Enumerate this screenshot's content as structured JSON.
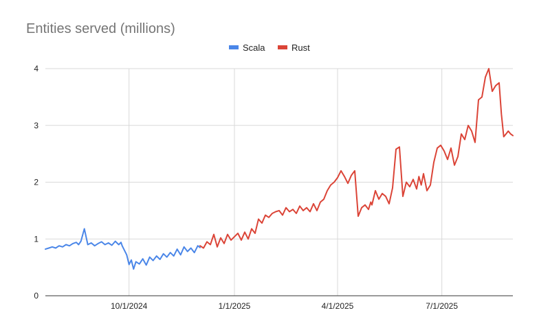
{
  "chart_data": {
    "type": "line",
    "title": "Entities served (millions)",
    "xlabel": "",
    "ylabel": "",
    "ylim": [
      0,
      4
    ],
    "xlim": [
      "2024-07-20",
      "2025-09-01"
    ],
    "y_ticks": [
      "0",
      "1",
      "2",
      "3",
      "4"
    ],
    "x_ticks": [
      {
        "date": "2024-10-01",
        "label": "10/1/2024"
      },
      {
        "date": "2025-01-01",
        "label": "1/1/2025"
      },
      {
        "date": "2025-04-01",
        "label": "4/1/2025"
      },
      {
        "date": "2025-07-01",
        "label": "7/1/2025"
      }
    ],
    "grid": true,
    "legend": "top-center",
    "series": [
      {
        "name": "Scala",
        "color": "#4a86e8",
        "x": [
          "2024-07-20",
          "2024-07-23",
          "2024-07-26",
          "2024-07-29",
          "2024-08-01",
          "2024-08-04",
          "2024-08-07",
          "2024-08-10",
          "2024-08-13",
          "2024-08-16",
          "2024-08-18",
          "2024-08-20",
          "2024-08-23",
          "2024-08-26",
          "2024-08-29",
          "2024-09-01",
          "2024-09-04",
          "2024-09-07",
          "2024-09-10",
          "2024-09-13",
          "2024-09-16",
          "2024-09-19",
          "2024-09-22",
          "2024-09-24",
          "2024-09-25",
          "2024-09-27",
          "2024-09-29",
          "2024-10-01",
          "2024-10-03",
          "2024-10-05",
          "2024-10-07",
          "2024-10-10",
          "2024-10-13",
          "2024-10-16",
          "2024-10-19",
          "2024-10-22",
          "2024-10-25",
          "2024-10-28",
          "2024-10-31",
          "2024-11-03",
          "2024-11-06",
          "2024-11-09",
          "2024-11-12",
          "2024-11-15",
          "2024-11-18",
          "2024-11-21",
          "2024-11-24",
          "2024-11-27",
          "2024-11-30",
          "2024-12-02"
        ],
        "values": [
          0.82,
          0.84,
          0.86,
          0.84,
          0.88,
          0.86,
          0.9,
          0.88,
          0.92,
          0.94,
          0.9,
          0.96,
          1.18,
          0.9,
          0.93,
          0.88,
          0.92,
          0.95,
          0.9,
          0.93,
          0.89,
          0.96,
          0.9,
          0.94,
          0.88,
          0.8,
          0.72,
          0.55,
          0.63,
          0.47,
          0.6,
          0.56,
          0.65,
          0.54,
          0.68,
          0.62,
          0.7,
          0.64,
          0.74,
          0.68,
          0.76,
          0.7,
          0.82,
          0.72,
          0.86,
          0.78,
          0.84,
          0.76,
          0.88,
          0.85
        ]
      },
      {
        "name": "Rust",
        "color": "#db4437",
        "x": [
          "2024-12-02",
          "2024-12-05",
          "2024-12-08",
          "2024-12-11",
          "2024-12-14",
          "2024-12-17",
          "2024-12-20",
          "2024-12-23",
          "2024-12-26",
          "2024-12-29",
          "2025-01-01",
          "2025-01-04",
          "2025-01-07",
          "2025-01-10",
          "2025-01-13",
          "2025-01-16",
          "2025-01-19",
          "2025-01-22",
          "2025-01-25",
          "2025-01-28",
          "2025-01-31",
          "2025-02-03",
          "2025-02-06",
          "2025-02-09",
          "2025-02-12",
          "2025-02-15",
          "2025-02-18",
          "2025-02-21",
          "2025-02-24",
          "2025-02-27",
          "2025-03-02",
          "2025-03-05",
          "2025-03-08",
          "2025-03-11",
          "2025-03-14",
          "2025-03-17",
          "2025-03-20",
          "2025-03-23",
          "2025-03-26",
          "2025-03-29",
          "2025-04-01",
          "2025-04-04",
          "2025-04-07",
          "2025-04-10",
          "2025-04-13",
          "2025-04-16",
          "2025-04-19",
          "2025-04-22",
          "2025-04-25",
          "2025-04-28",
          "2025-04-30",
          "2025-05-01",
          "2025-05-04",
          "2025-05-07",
          "2025-05-10",
          "2025-05-13",
          "2025-05-16",
          "2025-05-19",
          "2025-05-22",
          "2025-05-25",
          "2025-05-28",
          "2025-05-31",
          "2025-06-03",
          "2025-06-06",
          "2025-06-09",
          "2025-06-11",
          "2025-06-13",
          "2025-06-15",
          "2025-06-18",
          "2025-06-21",
          "2025-06-24",
          "2025-06-27",
          "2025-06-30",
          "2025-07-03",
          "2025-07-06",
          "2025-07-09",
          "2025-07-12",
          "2025-07-15",
          "2025-07-18",
          "2025-07-21",
          "2025-07-24",
          "2025-07-27",
          "2025-07-30",
          "2025-08-02",
          "2025-08-05",
          "2025-08-08",
          "2025-08-11",
          "2025-08-14",
          "2025-08-17",
          "2025-08-20",
          "2025-08-22",
          "2025-08-24",
          "2025-08-26",
          "2025-08-28",
          "2025-08-30",
          "2025-09-01"
        ],
        "values": [
          0.88,
          0.84,
          0.95,
          0.9,
          1.08,
          0.86,
          1.02,
          0.92,
          1.08,
          0.98,
          1.04,
          1.1,
          0.98,
          1.12,
          1.0,
          1.18,
          1.1,
          1.35,
          1.28,
          1.42,
          1.38,
          1.45,
          1.48,
          1.5,
          1.42,
          1.55,
          1.48,
          1.52,
          1.45,
          1.58,
          1.5,
          1.55,
          1.48,
          1.62,
          1.5,
          1.65,
          1.7,
          1.85,
          1.95,
          2.0,
          2.08,
          2.2,
          2.1,
          1.98,
          2.12,
          2.2,
          1.4,
          1.55,
          1.6,
          1.52,
          1.65,
          1.6,
          1.85,
          1.7,
          1.8,
          1.75,
          1.62,
          1.9,
          2.58,
          2.62,
          1.75,
          2.0,
          1.92,
          2.05,
          1.88,
          2.1,
          1.95,
          2.15,
          1.85,
          1.95,
          2.35,
          2.6,
          2.65,
          2.55,
          2.4,
          2.6,
          2.3,
          2.45,
          2.85,
          2.75,
          3.0,
          2.9,
          2.7,
          3.45,
          3.5,
          3.85,
          4.0,
          3.6,
          3.7,
          3.75,
          3.2,
          2.8,
          2.85,
          2.9,
          2.85,
          2.82
        ]
      }
    ]
  }
}
